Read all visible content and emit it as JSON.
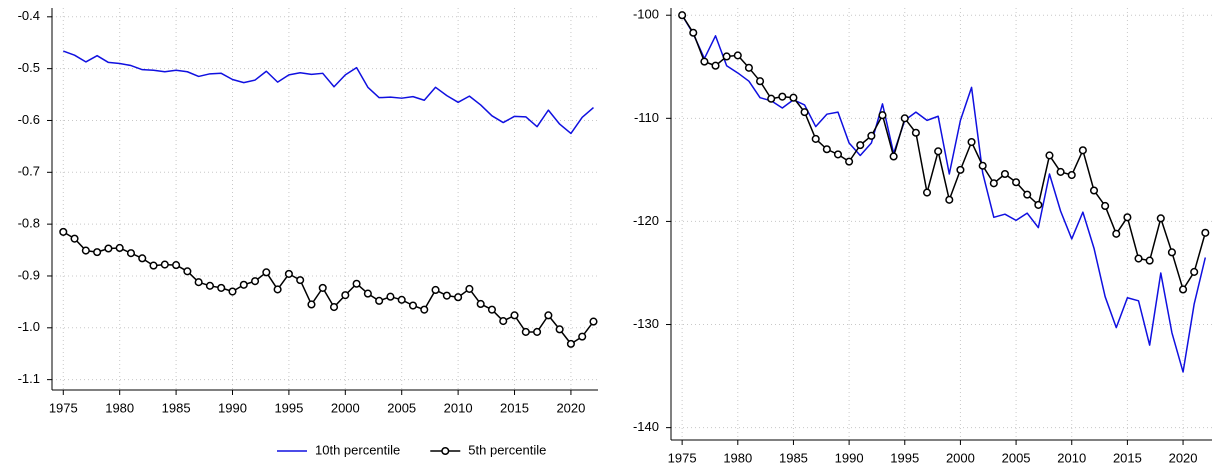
{
  "chart_data": [
    {
      "type": "line",
      "x": [
        1975,
        1976,
        1977,
        1978,
        1979,
        1980,
        1981,
        1982,
        1983,
        1984,
        1985,
        1986,
        1987,
        1988,
        1989,
        1990,
        1991,
        1992,
        1993,
        1994,
        1995,
        1996,
        1997,
        1998,
        1999,
        2000,
        2001,
        2002,
        2003,
        2004,
        2005,
        2006,
        2007,
        2008,
        2009,
        2010,
        2011,
        2012,
        2013,
        2014,
        2015,
        2016,
        2017,
        2018,
        2019,
        2020,
        2021,
        2022
      ],
      "series": [
        {
          "name": "10th percentile",
          "color": "#1010e0",
          "marker": false,
          "values": [
            -0.466,
            -0.474,
            -0.487,
            -0.475,
            -0.488,
            -0.49,
            -0.494,
            -0.502,
            -0.503,
            -0.506,
            -0.503,
            -0.506,
            -0.515,
            -0.51,
            -0.509,
            -0.521,
            -0.527,
            -0.522,
            -0.505,
            -0.526,
            -0.512,
            -0.508,
            -0.511,
            -0.509,
            -0.535,
            -0.512,
            -0.498,
            -0.536,
            -0.556,
            -0.555,
            -0.557,
            -0.554,
            -0.561,
            -0.536,
            -0.552,
            -0.565,
            -0.553,
            -0.57,
            -0.591,
            -0.604,
            -0.592,
            -0.593,
            -0.612,
            -0.58,
            -0.607,
            -0.625,
            -0.594,
            -0.575
          ]
        },
        {
          "name": "5th percentile",
          "color": "#000000",
          "marker": true,
          "values": [
            -0.815,
            -0.828,
            -0.851,
            -0.854,
            -0.847,
            -0.846,
            -0.856,
            -0.866,
            -0.88,
            -0.878,
            -0.879,
            -0.891,
            -0.912,
            -0.919,
            -0.923,
            -0.93,
            -0.917,
            -0.91,
            -0.893,
            -0.926,
            -0.896,
            -0.908,
            -0.955,
            -0.923,
            -0.96,
            -0.937,
            -0.915,
            -0.934,
            -0.948,
            -0.94,
            -0.946,
            -0.957,
            -0.965,
            -0.927,
            -0.938,
            -0.941,
            -0.925,
            -0.954,
            -0.965,
            -0.987,
            -0.976,
            -1.008,
            -1.008,
            -0.976,
            -1.003,
            -1.031,
            -1.017,
            -0.988
          ]
        }
      ],
      "xlim": [
        1974,
        2022.4
      ],
      "xticks": [
        1975,
        1980,
        1985,
        1990,
        1995,
        2000,
        2005,
        2010,
        2015,
        2020
      ],
      "ylim": [
        -1.12,
        -0.383
      ],
      "yticks": [
        -0.4,
        -0.5,
        -0.6,
        -0.7,
        -0.8,
        -0.9,
        {
          "value": -1,
          "label": "-1.0"
        },
        -1.1
      ],
      "grid": true,
      "legend": "bottom"
    },
    {
      "type": "line",
      "x": [
        1975,
        1976,
        1977,
        1978,
        1979,
        1980,
        1981,
        1982,
        1983,
        1984,
        1985,
        1986,
        1987,
        1988,
        1989,
        1990,
        1991,
        1992,
        1993,
        1994,
        1995,
        1996,
        1997,
        1998,
        1999,
        2000,
        2001,
        2002,
        2003,
        2004,
        2005,
        2006,
        2007,
        2008,
        2009,
        2010,
        2011,
        2012,
        2013,
        2014,
        2015,
        2016,
        2017,
        2018,
        2019,
        2020,
        2021,
        2022
      ],
      "series": [
        {
          "color": "#1010e0",
          "marker": false,
          "values": [
            -100.0,
            -101.8,
            -104.2,
            -102.0,
            -104.9,
            -105.6,
            -106.4,
            -108.0,
            -108.3,
            -109.0,
            -108.2,
            -108.7,
            -110.8,
            -109.6,
            -109.4,
            -112.4,
            -113.6,
            -112.4,
            -108.6,
            -113.4,
            -110.2,
            -109.4,
            -110.2,
            -109.8,
            -115.4,
            -110.2,
            -107.0,
            -115.3,
            -119.6,
            -119.3,
            -119.9,
            -119.2,
            -120.6,
            -115.4,
            -119.0,
            -121.7,
            -119.1,
            -122.6,
            -127.3,
            -130.3,
            -127.4,
            -127.7,
            -132.0,
            -125.0,
            -130.8,
            -134.6,
            -128.0,
            -123.5
          ]
        },
        {
          "color": "#000000",
          "marker": true,
          "values": [
            -100.0,
            -101.7,
            -104.5,
            -104.9,
            -104.0,
            -103.9,
            -105.1,
            -106.4,
            -108.1,
            -107.9,
            -108.0,
            -109.4,
            -112.0,
            -113.0,
            -113.5,
            -114.2,
            -112.6,
            -111.7,
            -109.7,
            -113.7,
            -110.0,
            -111.4,
            -117.2,
            -113.2,
            -117.9,
            -115.0,
            -112.3,
            -114.6,
            -116.3,
            -115.4,
            -116.2,
            -117.4,
            -118.4,
            -113.6,
            -115.2,
            -115.5,
            -113.1,
            -117.0,
            -118.5,
            -121.2,
            -119.6,
            -123.6,
            -123.8,
            -119.7,
            -123.0,
            -126.6,
            -124.9,
            -121.1
          ]
        }
      ],
      "xlim": [
        1974,
        2022.6
      ],
      "xticks": [
        1975,
        1980,
        1985,
        1990,
        1995,
        2000,
        2005,
        2010,
        2015,
        2020
      ],
      "ylim": [
        -141.2,
        -99.3
      ],
      "yticks": [
        -100,
        -110,
        -120,
        -130,
        -140
      ],
      "grid": true
    }
  ]
}
